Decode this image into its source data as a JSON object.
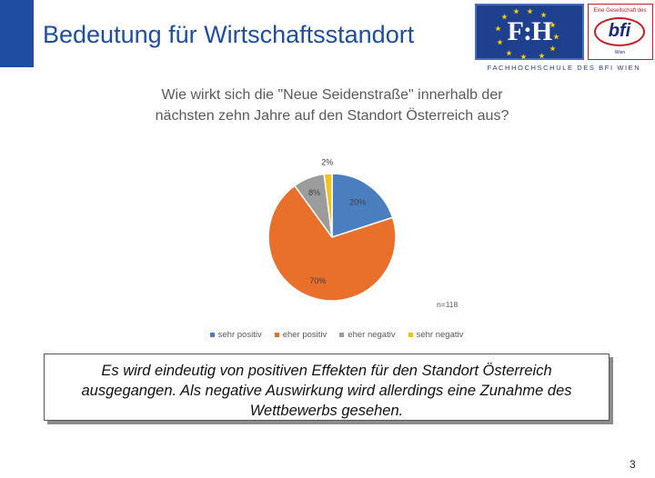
{
  "slide": {
    "title": "Bedeutung für Wirtschaftsstandort",
    "page_number": "3"
  },
  "logo": {
    "fh_text": "F:H",
    "bfi_top": "Eine Gesellschaft des",
    "bfi_text": "bfi",
    "bfi_sub": "Wien",
    "caption": "FACHHOCHSCHULE DES BFI WIEN"
  },
  "colors": {
    "accent": "#1f4ea0",
    "sehr_positiv": "#4a7ebf",
    "eher_positiv": "#e8702a",
    "eher_negativ": "#9c9c9c",
    "sehr_negativ": "#f2c21b"
  },
  "chart_data": {
    "type": "pie",
    "title": "Wie wirkt sich die \"Neue Seidenstraße\" innerhalb der nächsten zehn Jahre auf den Standort Österreich aus?",
    "categories": [
      "sehr positiv",
      "eher positiv",
      "eher negativ",
      "sehr negativ"
    ],
    "values": [
      20,
      70,
      8,
      2
    ],
    "labels": [
      "20%",
      "70%",
      "8%",
      "2%"
    ],
    "colors": [
      "#4a7ebf",
      "#e8702a",
      "#9c9c9c",
      "#f2c21b"
    ],
    "legend_position": "bottom",
    "note": "n=118"
  },
  "callout": {
    "text": "Es wird eindeutig von positiven Effekten für den Standort Österreich ausgegangen. Als negative Auswirkung wird allerdings eine Zunahme des Wettbewerbs gesehen."
  }
}
